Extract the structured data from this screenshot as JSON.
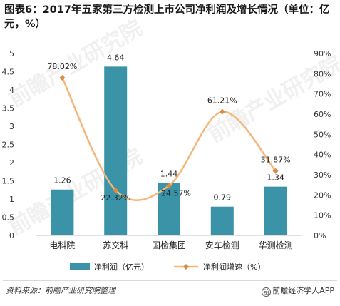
{
  "title": "图表6：2017年五家第三方检测上市公司净利润及增长情况（单位：亿元，%）",
  "chart_data": {
    "type": "bar",
    "categories": [
      "电科院",
      "苏交科",
      "国检集团",
      "安车检测",
      "华测检测"
    ],
    "series": [
      {
        "name": "净利润（亿元）",
        "type": "bar",
        "axis": "left",
        "color": "#3a93a6",
        "values": [
          1.26,
          4.64,
          1.44,
          0.79,
          1.34
        ],
        "labels": [
          "1.26",
          "4.64",
          "1.44",
          "0.79",
          "1.34"
        ]
      },
      {
        "name": "净利润增速（%）",
        "type": "line",
        "axis": "right",
        "color": "#f4b77a",
        "marker_color": "#d98c45",
        "values": [
          78.02,
          22.32,
          24.57,
          61.21,
          31.87
        ],
        "labels": [
          "78.02%",
          "22.32%",
          "24.57%",
          "61.21%",
          "31.87%"
        ]
      }
    ],
    "ylim_left": [
      0,
      5
    ],
    "yticks_left": [
      "0",
      "0.5",
      "1",
      "1.5",
      "2",
      "2.5",
      "3",
      "3.5",
      "4",
      "4.5",
      "5"
    ],
    "ylim_right": [
      0,
      90
    ],
    "yticks_right": [
      "0%",
      "10%",
      "20%",
      "30%",
      "40%",
      "50%",
      "60%",
      "70%",
      "80%",
      "90%"
    ],
    "legend_position": "bottom",
    "grid": false
  },
  "watermark": "前瞻产业研究院",
  "footer": {
    "source": "资料来源：前瞻产业研究院整理",
    "brand": "前瞻经济学人APP",
    "brand_icon": "前"
  }
}
